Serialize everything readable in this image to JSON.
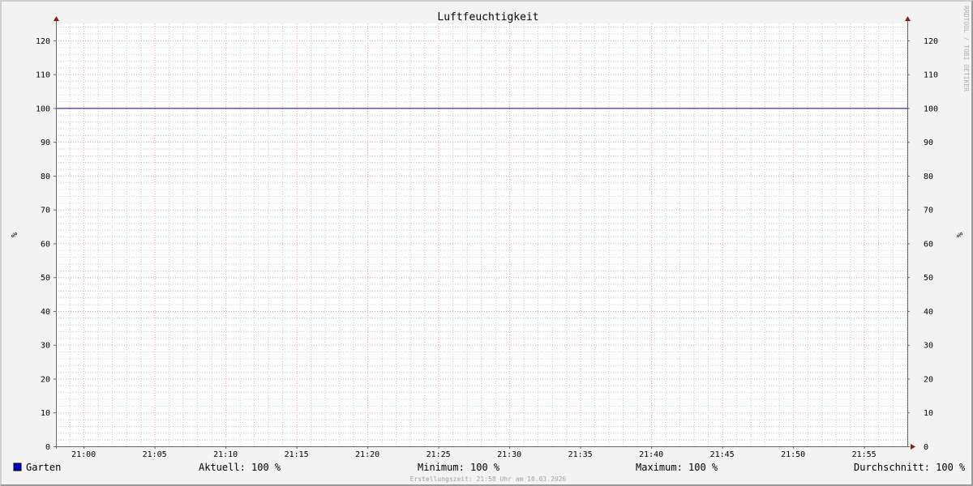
{
  "chart_data": {
    "type": "line",
    "title": "Luftfeuchtigkeit",
    "ylabel": "%",
    "ylabel_right": "%",
    "ylim": [
      0,
      125
    ],
    "yticks": [
      0,
      10,
      20,
      30,
      40,
      50,
      60,
      70,
      80,
      90,
      100,
      110,
      120
    ],
    "xlim": [
      "20:58",
      "21:58"
    ],
    "xticks": [
      "21:00",
      "21:05",
      "21:10",
      "21:15",
      "21:20",
      "21:25",
      "21:30",
      "21:35",
      "21:40",
      "21:45",
      "21:50",
      "21:55"
    ],
    "grid": true,
    "series": [
      {
        "name": "Garten",
        "color": "#0000cc",
        "x": [
          "20:58",
          "21:58"
        ],
        "values": [
          100,
          100
        ]
      }
    ],
    "colors": {
      "major_grid": "#e8a0a0",
      "minor_grid": "#c8c8c8",
      "axis": "#666666",
      "arrow": "#8b1a1a",
      "plot_bg": "#ffffff",
      "canvas_bg": "#f3f3f3"
    }
  },
  "legend": {
    "series_label": "Garten",
    "aktuell": "Aktuell: 100 %",
    "minimum": "Minimum: 100 %",
    "maximum": "Maximum: 100 %",
    "durchschnitt": "Durchschnitt: 100 %"
  },
  "watermark": "RRDTOOL / TOBI OETIKER",
  "footer": "Erstellungszeit: 21:58 Uhr am 10.03.2026"
}
